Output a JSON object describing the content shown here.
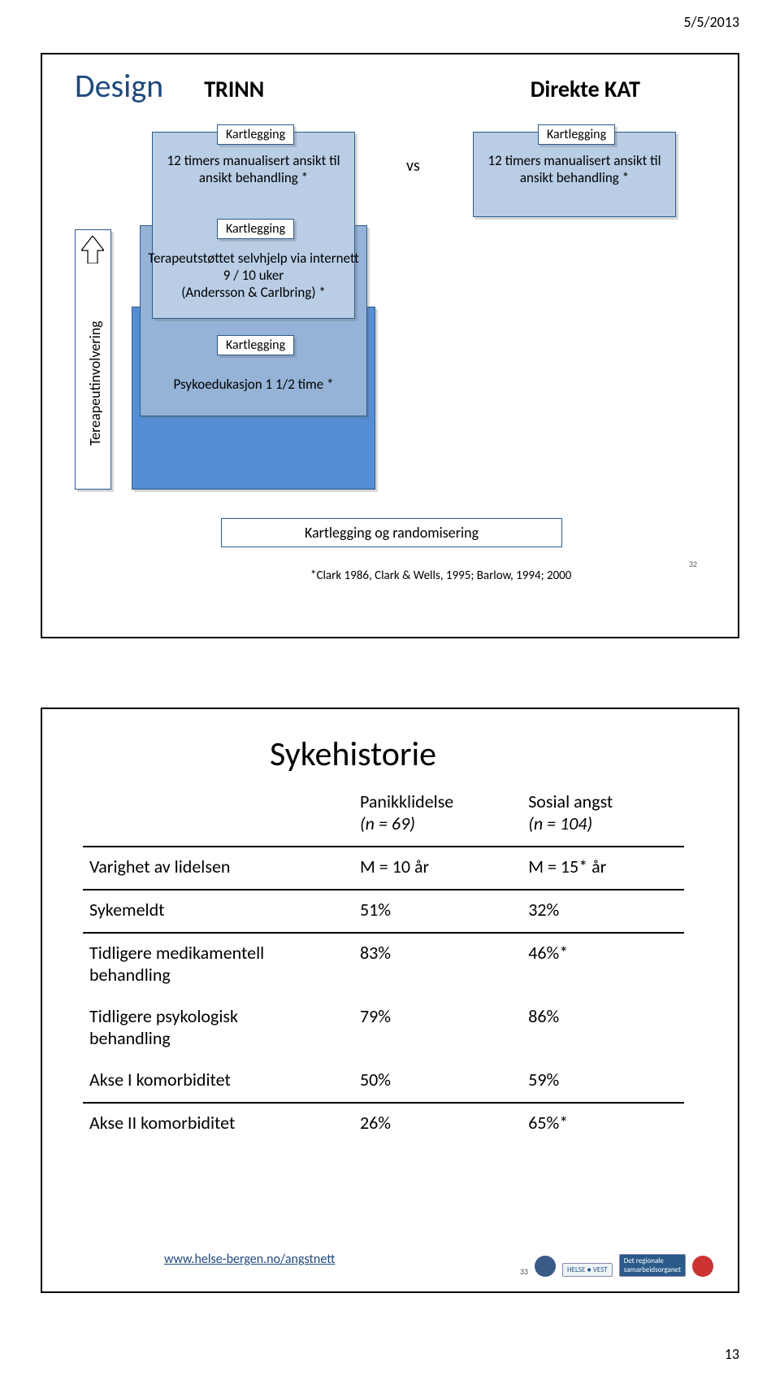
{
  "page": {
    "date": "5/5/2013",
    "number": "13"
  },
  "slide1": {
    "title": "Design",
    "col_left_title": "TRINN",
    "col_right_title": "Direkte KAT",
    "vs": "vs",
    "kartlegging": "Kartlegging",
    "therapeutic_involvement": "Tereapeutinvolvering",
    "treatments": {
      "left_top": {
        "text": "12 timers manualisert ansikt til\nansikt behandling *",
        "bg": "#b9cde5"
      },
      "right_top": {
        "text": "12 timers manualisert ansikt til\nansikt behandling *",
        "bg": "#b9cde5"
      },
      "selfhelp": {
        "text": "Terapeutstøttet selvhjelp via internett\n9 / 10 uker\n(Andersson & Carlbring) *",
        "bg": "#95b3d7"
      },
      "psychoed": {
        "text": "Psykoedukasjon 1 1/2 time *",
        "bg": "#558ed5"
      }
    },
    "randomisering": "Kartlegging og randomisering",
    "citation": "*Clark 1986, Clark & Wells, 1995; Barlow, 1994; 2000",
    "slide_num": "32",
    "colors": {
      "frame": "#2a5a8a",
      "heading": "#1f497d",
      "randomisering_bg": "#ffffff"
    }
  },
  "slide2": {
    "title": "Sykehistorie",
    "header": {
      "col_b_l1": "Panikklidelse",
      "col_b_l2": "(n = 69)",
      "col_c_l1": "Sosial angst",
      "col_c_l2": "(n = 104)"
    },
    "rows": [
      {
        "a": "Varighet av lidelsen",
        "b": "M = 10 år",
        "c": "M = 15* år",
        "sep": true
      },
      {
        "a": "Sykemeldt",
        "b": "51%",
        "c": "32%",
        "sep": true
      },
      {
        "a": "Tidligere medikamentell\nbehandling",
        "b": "83%",
        "c": "46%*",
        "sep": false
      },
      {
        "a": "Tidligere psykologisk\nbehandling",
        "b": "79%",
        "c": "86%",
        "sep": false
      },
      {
        "a": "Akse I komorbiditet",
        "b": "50%",
        "c": "59%",
        "sep": true
      },
      {
        "a": "Akse II komorbiditet",
        "b": "26%",
        "c": "65%*",
        "sep": false
      }
    ],
    "footer_link": "www.helse-bergen.no/angstnett",
    "slide_num": "33",
    "logos": {
      "helse_vest": "HELSE ● VEST",
      "samarbeid": "Det regionale\nsamarbeidsorganet"
    },
    "colors": {
      "link": "#1f497d",
      "border": "#000000"
    }
  }
}
